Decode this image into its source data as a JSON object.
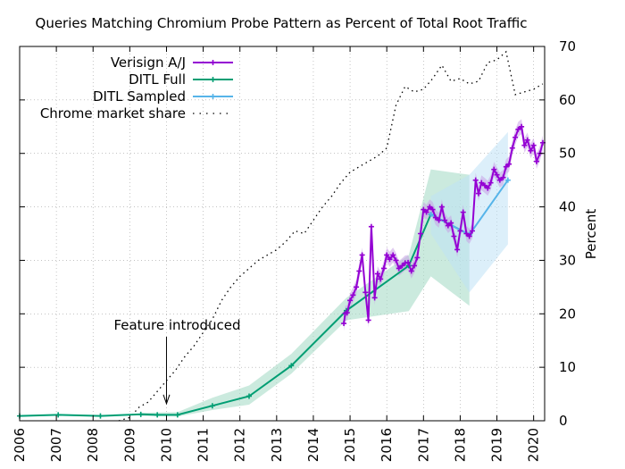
{
  "chart_data": {
    "type": "line",
    "title": "Queries Matching Chromium Probe Pattern as Percent of Total Root Traffic",
    "xlabel": "",
    "ylabel": "Percent",
    "xlim": [
      2006,
      2020.3
    ],
    "ylim": [
      0,
      70
    ],
    "x_ticks": [
      "2006",
      "2007",
      "2008",
      "2009",
      "2010",
      "2011",
      "2012",
      "2013",
      "2014",
      "2015",
      "2016",
      "2017",
      "2018",
      "2019",
      "2020"
    ],
    "y_ticks": [
      "0",
      "10",
      "20",
      "30",
      "40",
      "50",
      "60",
      "70"
    ],
    "y_axis_side": "right",
    "grid": true,
    "legend_position": "top-left",
    "annotation": {
      "text": "Feature introduced",
      "x": 2010.0,
      "y": 3.2
    },
    "series": [
      {
        "name": "Verisign A/J",
        "color": "#9400d3",
        "style": "line-points",
        "points": [
          [
            2014.83,
            18.2
          ],
          [
            2014.87,
            20.1
          ],
          [
            2014.92,
            20.2
          ],
          [
            2015.0,
            22.5
          ],
          [
            2015.08,
            23.5
          ],
          [
            2015.17,
            25.0
          ],
          [
            2015.25,
            28.0
          ],
          [
            2015.33,
            31.0
          ],
          [
            2015.42,
            24.0
          ],
          [
            2015.5,
            18.8
          ],
          [
            2015.58,
            36.3
          ],
          [
            2015.67,
            23.0
          ],
          [
            2015.75,
            27.5
          ],
          [
            2015.83,
            26.5
          ],
          [
            2015.92,
            28.5
          ],
          [
            2016.0,
            31.0
          ],
          [
            2016.08,
            30.2
          ],
          [
            2016.17,
            31.0
          ],
          [
            2016.25,
            30.0
          ],
          [
            2016.33,
            28.5
          ],
          [
            2016.42,
            29.0
          ],
          [
            2016.5,
            29.5
          ],
          [
            2016.58,
            29.6
          ],
          [
            2016.67,
            28.0
          ],
          [
            2016.75,
            29.0
          ],
          [
            2016.83,
            30.5
          ],
          [
            2016.92,
            35.0
          ],
          [
            2017.0,
            39.5
          ],
          [
            2017.08,
            39.0
          ],
          [
            2017.17,
            40.0
          ],
          [
            2017.25,
            39.5
          ],
          [
            2017.33,
            38.0
          ],
          [
            2017.42,
            37.5
          ],
          [
            2017.5,
            40.0
          ],
          [
            2017.58,
            37.5
          ],
          [
            2017.67,
            36.5
          ],
          [
            2017.75,
            37.0
          ],
          [
            2017.83,
            34.5
          ],
          [
            2017.92,
            32.0
          ],
          [
            2018.0,
            35.5
          ],
          [
            2018.08,
            39.0
          ],
          [
            2018.17,
            35.0
          ],
          [
            2018.25,
            34.5
          ],
          [
            2018.33,
            35.5
          ],
          [
            2018.42,
            45.0
          ],
          [
            2018.5,
            42.5
          ],
          [
            2018.58,
            44.5
          ],
          [
            2018.67,
            44.0
          ],
          [
            2018.75,
            43.5
          ],
          [
            2018.83,
            44.5
          ],
          [
            2018.92,
            47.0
          ],
          [
            2019.0,
            46.0
          ],
          [
            2019.08,
            45.0
          ],
          [
            2019.17,
            45.5
          ],
          [
            2019.25,
            47.5
          ],
          [
            2019.33,
            48.0
          ],
          [
            2019.42,
            51.0
          ],
          [
            2019.5,
            53.0
          ],
          [
            2019.58,
            54.5
          ],
          [
            2019.67,
            55.0
          ],
          [
            2019.75,
            51.5
          ],
          [
            2019.83,
            52.5
          ],
          [
            2019.92,
            50.5
          ],
          [
            2020.0,
            51.5
          ],
          [
            2020.08,
            48.5
          ],
          [
            2020.17,
            50.0
          ],
          [
            2020.25,
            52.0
          ]
        ]
      },
      {
        "name": "DITL Full",
        "color": "#009e73",
        "style": "line-points",
        "points": [
          [
            2006.0,
            0.9
          ],
          [
            2007.05,
            1.1
          ],
          [
            2008.2,
            0.9
          ],
          [
            2009.3,
            1.2
          ],
          [
            2009.75,
            1.1
          ],
          [
            2010.3,
            1.1
          ],
          [
            2011.25,
            2.8
          ],
          [
            2012.25,
            4.6
          ],
          [
            2013.4,
            10.3
          ],
          [
            2014.9,
            20.6
          ],
          [
            2016.6,
            29.0
          ],
          [
            2017.2,
            38.6
          ],
          [
            2018.25,
            34.8
          ]
        ],
        "band_upper": [
          [
            2009.3,
            1.5
          ],
          [
            2010.3,
            1.6
          ],
          [
            2011.25,
            4.3
          ],
          [
            2012.25,
            6.6
          ],
          [
            2013.4,
            12.5
          ],
          [
            2014.9,
            23.0
          ],
          [
            2016.6,
            31.0
          ],
          [
            2017.2,
            47.0
          ],
          [
            2018.25,
            46.0
          ]
        ],
        "band_lower": [
          [
            2009.3,
            0.9
          ],
          [
            2010.3,
            0.8
          ],
          [
            2011.25,
            2.0
          ],
          [
            2012.25,
            3.0
          ],
          [
            2013.4,
            8.8
          ],
          [
            2014.9,
            18.8
          ],
          [
            2016.6,
            20.5
          ],
          [
            2017.2,
            27.0
          ],
          [
            2018.25,
            21.5
          ]
        ]
      },
      {
        "name": "DITL Sampled",
        "color": "#56b4e9",
        "style": "line-points",
        "points": [
          [
            2017.2,
            38.6
          ],
          [
            2018.25,
            34.8
          ],
          [
            2019.3,
            45.0
          ]
        ],
        "band_upper": [
          [
            2017.2,
            42.0
          ],
          [
            2018.25,
            46.0
          ],
          [
            2019.3,
            54.0
          ]
        ],
        "band_lower": [
          [
            2017.2,
            35.0
          ],
          [
            2018.25,
            24.0
          ],
          [
            2019.3,
            33.0
          ]
        ]
      },
      {
        "name": "Chrome market share",
        "color": "#000000",
        "style": "dotted",
        "points": [
          [
            2008.7,
            0.0
          ],
          [
            2009.0,
            0.6
          ],
          [
            2009.25,
            2.5
          ],
          [
            2009.5,
            3.5
          ],
          [
            2009.75,
            5.5
          ],
          [
            2010.0,
            7.5
          ],
          [
            2010.25,
            9.5
          ],
          [
            2010.5,
            12.0
          ],
          [
            2010.75,
            14.0
          ],
          [
            2011.0,
            16.5
          ],
          [
            2011.25,
            19.0
          ],
          [
            2011.5,
            22.5
          ],
          [
            2011.75,
            25.0
          ],
          [
            2012.0,
            27.0
          ],
          [
            2012.25,
            28.5
          ],
          [
            2012.5,
            30.0
          ],
          [
            2012.75,
            31.0
          ],
          [
            2013.0,
            32.0
          ],
          [
            2013.25,
            33.5
          ],
          [
            2013.5,
            35.5
          ],
          [
            2013.75,
            35.0
          ],
          [
            2014.0,
            37.5
          ],
          [
            2014.25,
            40.0
          ],
          [
            2014.5,
            42.0
          ],
          [
            2014.75,
            44.5
          ],
          [
            2015.0,
            46.5
          ],
          [
            2015.25,
            47.5
          ],
          [
            2015.5,
            48.5
          ],
          [
            2015.75,
            49.5
          ],
          [
            2016.0,
            51.0
          ],
          [
            2016.25,
            59.0
          ],
          [
            2016.5,
            62.5
          ],
          [
            2016.75,
            61.5
          ],
          [
            2017.0,
            62.0
          ],
          [
            2017.25,
            64.0
          ],
          [
            2017.5,
            66.5
          ],
          [
            2017.75,
            63.5
          ],
          [
            2018.0,
            64.0
          ],
          [
            2018.25,
            63.0
          ],
          [
            2018.5,
            63.5
          ],
          [
            2018.75,
            67.0
          ],
          [
            2019.0,
            67.5
          ],
          [
            2019.25,
            69.0
          ],
          [
            2019.5,
            61.0
          ],
          [
            2019.75,
            61.5
          ],
          [
            2020.0,
            62.0
          ],
          [
            2020.25,
            63.0
          ]
        ]
      }
    ]
  }
}
